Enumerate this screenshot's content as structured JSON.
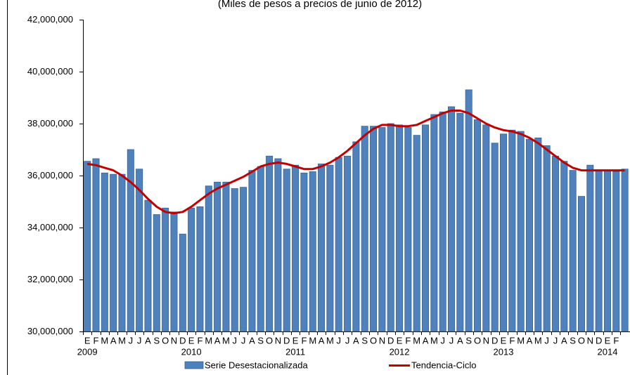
{
  "chart_data": {
    "type": "bar_line",
    "title": "(Miles de pesos a precios de junio de 2012)",
    "categories": [
      "E",
      "F",
      "M",
      "A",
      "M",
      "J",
      "J",
      "A",
      "S",
      "O",
      "N",
      "D",
      "E",
      "F",
      "M",
      "A",
      "M",
      "J",
      "J",
      "A",
      "S",
      "O",
      "N",
      "D",
      "E",
      "F",
      "M",
      "A",
      "M",
      "J",
      "J",
      "A",
      "S",
      "O",
      "N",
      "D",
      "E",
      "F",
      "M",
      "A",
      "M",
      "J",
      "J",
      "A",
      "S",
      "O",
      "N",
      "D",
      "E",
      "F",
      "M",
      "A",
      "M",
      "J",
      "J",
      "A",
      "S",
      "O",
      "N",
      "D",
      "E",
      "F",
      null
    ],
    "years": [
      "2009",
      "2010",
      "2011",
      "2012",
      "2013",
      "2014"
    ],
    "ylim": [
      30000000,
      42000000
    ],
    "yticks": [
      {
        "value": 30000000,
        "label": "30,000,000"
      },
      {
        "value": 32000000,
        "label": "32,000,000"
      },
      {
        "value": 34000000,
        "label": "34,000,000"
      },
      {
        "value": 36000000,
        "label": "36,000,000"
      },
      {
        "value": 38000000,
        "label": "38,000,000"
      },
      {
        "value": 40000000,
        "label": "40,000,000"
      },
      {
        "value": 42000000,
        "label": "42,000,000"
      }
    ],
    "series": [
      {
        "name": "Serie Desestacionalizada",
        "type": "bar",
        "color": "#4f81bd",
        "values": [
          36550000,
          36650000,
          36100000,
          36050000,
          36050000,
          37000000,
          36250000,
          35050000,
          34500000,
          34750000,
          34600000,
          33750000,
          34750000,
          34800000,
          35600000,
          35750000,
          35750000,
          35500000,
          35550000,
          36200000,
          36350000,
          36750000,
          36650000,
          36250000,
          36400000,
          36100000,
          36150000,
          36450000,
          36400000,
          36700000,
          36750000,
          37300000,
          37900000,
          37900000,
          37850000,
          38000000,
          37950000,
          37850000,
          37550000,
          37950000,
          38350000,
          38450000,
          38650000,
          38400000,
          39300000,
          38150000,
          37950000,
          37250000,
          37600000,
          37750000,
          37700000,
          37400000,
          37450000,
          37150000,
          36750000,
          36550000,
          36200000,
          35200000,
          36400000,
          36200000,
          36200000,
          36150000,
          36250000
        ]
      },
      {
        "name": "Tendencia-Ciclo",
        "type": "line",
        "color": "#c00000",
        "values": [
          36450000,
          36400000,
          36300000,
          36200000,
          36000000,
          35750000,
          35450000,
          35100000,
          34800000,
          34600000,
          34550000,
          34600000,
          34800000,
          35050000,
          35300000,
          35500000,
          35650000,
          35800000,
          35950000,
          36150000,
          36350000,
          36450000,
          36500000,
          36450000,
          36350000,
          36250000,
          36250000,
          36350000,
          36500000,
          36700000,
          36950000,
          37250000,
          37550000,
          37800000,
          37950000,
          37950000,
          37900000,
          37900000,
          37950000,
          38100000,
          38250000,
          38400000,
          38500000,
          38500000,
          38400000,
          38200000,
          38000000,
          37850000,
          37750000,
          37700000,
          37600000,
          37450000,
          37250000,
          37000000,
          36750000,
          36500000,
          36300000,
          36200000,
          36200000,
          36200000,
          36200000,
          36200000,
          36200000
        ]
      }
    ]
  }
}
